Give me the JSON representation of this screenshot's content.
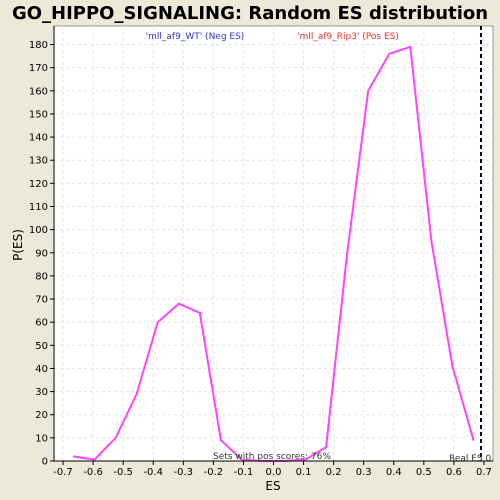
{
  "chart_data": {
    "type": "line",
    "title": "GO_HIPPO_SIGNALING: Random ES distribution",
    "xlabel": "ES",
    "ylabel": "P(ES)",
    "xlim": [
      -0.73,
      0.73
    ],
    "ylim": [
      0,
      188
    ],
    "xticks": [
      -0.7,
      -0.6,
      -0.5,
      -0.4,
      -0.3,
      -0.2,
      -0.1,
      0.0,
      0.1,
      0.2,
      0.3,
      0.4,
      0.5,
      0.6,
      0.7
    ],
    "xtick_labels": [
      "-0.7",
      "-0.6",
      "-0.5",
      "-0.4",
      "-0.3",
      "-0.2",
      "-0.1",
      "0.0",
      "0.1",
      "0.2",
      "0.3",
      "0.4",
      "0.5",
      "0.6",
      "0.7"
    ],
    "yticks": [
      0,
      10,
      20,
      30,
      40,
      50,
      60,
      70,
      80,
      90,
      100,
      110,
      120,
      130,
      140,
      150,
      160,
      170,
      180
    ],
    "grid": true,
    "series": [
      {
        "color": "#ff44ff",
        "x": [
          -0.665,
          -0.595,
          -0.525,
          -0.455,
          -0.385,
          -0.315,
          -0.245,
          -0.175,
          -0.105,
          -0.035,
          0.035,
          0.105,
          0.175,
          0.245,
          0.315,
          0.385,
          0.455,
          0.525,
          0.595,
          0.665
        ],
        "y": [
          2,
          0.6,
          10,
          29,
          60,
          68,
          64,
          9,
          0.5,
          0,
          0,
          0.5,
          6,
          90,
          160,
          176,
          179,
          95,
          41,
          9
        ]
      }
    ],
    "legend_neg": {
      "text": "'mll_af9_WT' (Neg ES)",
      "color": "#3333cc"
    },
    "legend_pos": {
      "text": "'mll_af9_Rip3' (Pos ES)",
      "color": "#dd3333"
    },
    "annotation": "Sets with pos scores: 76%",
    "real_es": {
      "label": "Real ES 0.",
      "value": 0.69,
      "color": "#000000"
    }
  }
}
